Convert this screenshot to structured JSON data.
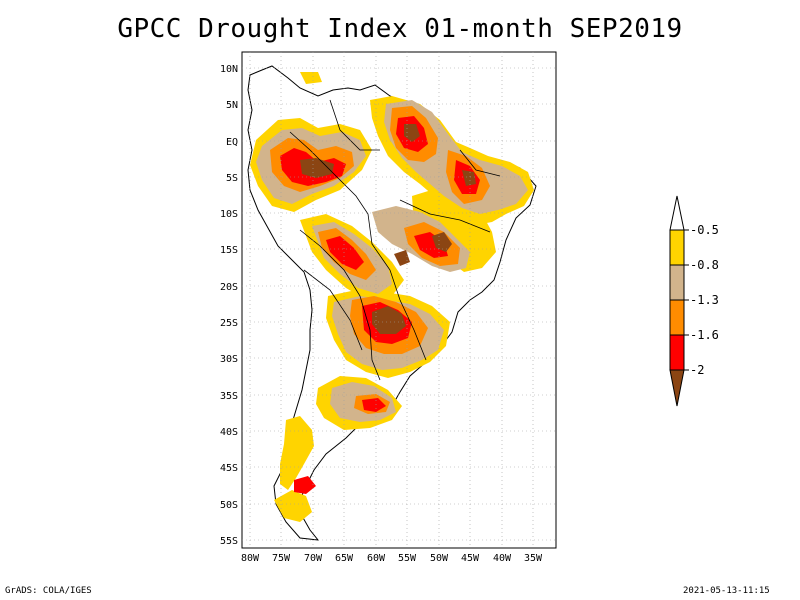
{
  "title": "GPCC Drought Index 01-month SEP2019",
  "footer": {
    "left": "GrADS: COLA/IGES",
    "right": "2021-05-13-11:15"
  },
  "axes": {
    "lat_labels": [
      "10N",
      "5N",
      "EQ",
      "5S",
      "10S",
      "15S",
      "20S",
      "25S",
      "30S",
      "35S",
      "40S",
      "45S",
      "50S",
      "55S"
    ],
    "lon_labels": [
      "80W",
      "75W",
      "70W",
      "65W",
      "60W",
      "55W",
      "50W",
      "45W",
      "40W",
      "35W"
    ]
  },
  "legend": {
    "labels": [
      "-0.5",
      "-0.8",
      "-1.3",
      "-1.6",
      "-2"
    ],
    "colors": [
      "#ffffff",
      "#ffd400",
      "#d2b48c",
      "#ff8c00",
      "#ff0000",
      "#8b4513"
    ]
  },
  "colors": {
    "land_outline": "#000000",
    "grid": "#a0a0a0",
    "white": "#ffffff"
  }
}
